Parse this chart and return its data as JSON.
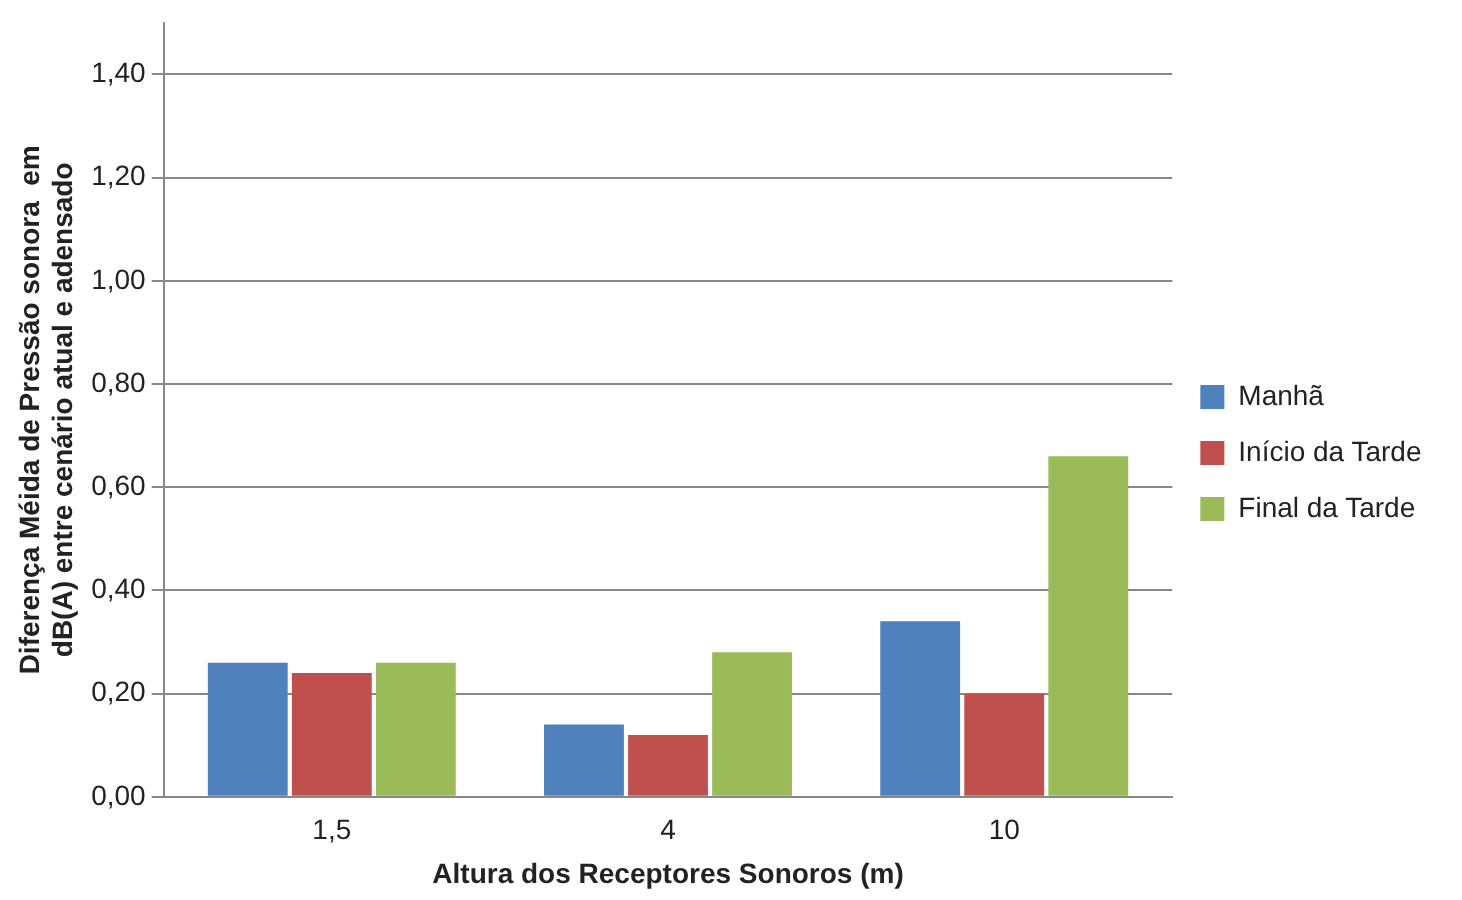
{
  "chart_data": {
    "type": "bar",
    "xlabel": "Altura dos Receptores Sonoros (m)",
    "ylabel": "Diferença Méida de Pressão sonora  em dB(A) entre cenário atual e adensado",
    "categories": [
      "1,5",
      "4",
      "10"
    ],
    "series": [
      {
        "name": "Manhã",
        "color": "#4f81bd",
        "values": [
          0.26,
          0.14,
          0.34
        ]
      },
      {
        "name": "Início da Tarde",
        "color": "#c0504d",
        "values": [
          0.24,
          0.12,
          0.2
        ]
      },
      {
        "name": "Final da Tarde",
        "color": "#9bbb59",
        "values": [
          0.26,
          0.28,
          0.66
        ]
      }
    ],
    "ylim": [
      0,
      1.5
    ],
    "yticks": [
      {
        "value": 0,
        "label": "0,00"
      },
      {
        "value": 0.2,
        "label": "0,20"
      },
      {
        "value": 0.4,
        "label": "0,40"
      },
      {
        "value": 0.6,
        "label": "0,60"
      },
      {
        "value": 0.8,
        "label": "0,80"
      },
      {
        "value": 1,
        "label": "1,00"
      },
      {
        "value": 1.2,
        "label": "1,20"
      },
      {
        "value": 1.4,
        "label": "1,40"
      }
    ],
    "grid": "y",
    "legend": "right"
  }
}
